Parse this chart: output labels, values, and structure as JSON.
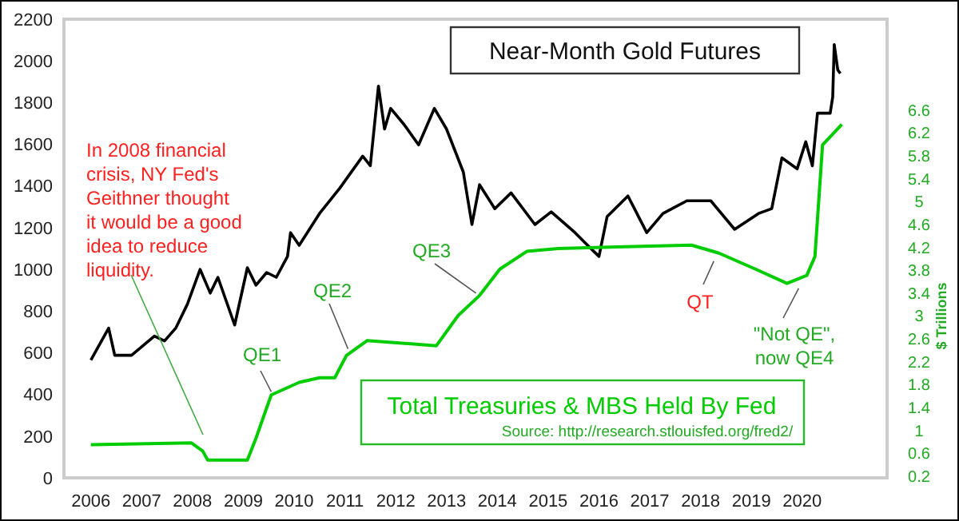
{
  "chart_data": {
    "type": "line",
    "title": "Near-Month Gold Futures",
    "y2label": "$ Trillions",
    "xlim": [
      2005.47,
      2021.67
    ],
    "xticks": [
      2006,
      2007,
      2008,
      2009,
      2010,
      2011,
      2012,
      2013,
      2014,
      2015,
      2016,
      2017,
      2018,
      2019,
      2020
    ],
    "ylim": [
      0,
      2200
    ],
    "yticks": [
      0,
      200,
      400,
      600,
      800,
      1000,
      1200,
      1400,
      1600,
      1800,
      2000,
      2200
    ],
    "y2lim": [
      0.17,
      8.19
    ],
    "y2ticks": [
      0.2,
      0.6,
      1,
      1.4,
      1.8,
      2.2,
      2.6,
      3,
      3.4,
      3.8,
      4.2,
      4.6,
      5,
      5.4,
      5.8,
      6.2,
      6.6
    ],
    "grid": false,
    "marker": "none",
    "series": [
      {
        "color": "#000000",
        "x": [
          2006.0,
          2006.35,
          2006.47,
          2006.8,
          2007.25,
          2007.45,
          2007.67,
          2007.9,
          2008.15,
          2008.35,
          2008.5,
          2008.83,
          2009.08,
          2009.25,
          2009.46,
          2009.65,
          2009.87,
          2009.93,
          2010.1,
          2010.5,
          2010.9,
          2011.35,
          2011.5,
          2011.66,
          2011.78,
          2011.9,
          2012.16,
          2012.45,
          2012.76,
          2013.0,
          2013.33,
          2013.5,
          2013.65,
          2013.95,
          2014.27,
          2014.74,
          2015.06,
          2015.53,
          2015.84,
          2016.0,
          2016.16,
          2016.57,
          2016.94,
          2017.26,
          2017.73,
          2018.2,
          2018.67,
          2019.14,
          2019.4,
          2019.6,
          2019.9,
          2020.07,
          2020.2,
          2020.3,
          2020.55,
          2020.6,
          2020.63,
          2020.7,
          2020.75
        ],
        "values": [
          565,
          718,
          588,
          588,
          680,
          657,
          718,
          833,
          1000,
          886,
          962,
          733,
          1008,
          924,
          985,
          962,
          1062,
          1176,
          1115,
          1268,
          1390,
          1543,
          1497,
          1879,
          1673,
          1772,
          1696,
          1597,
          1772,
          1673,
          1467,
          1215,
          1406,
          1291,
          1367,
          1215,
          1276,
          1176,
          1100,
          1062,
          1253,
          1352,
          1176,
          1268,
          1329,
          1329,
          1192,
          1268,
          1291,
          1535,
          1482,
          1612,
          1497,
          1749,
          1749,
          1826,
          2078,
          1956,
          1940
        ]
      },
      {
        "name": "Total Treasuries & MBS Held By Fed",
        "color": "#00cc00",
        "axis": "y2",
        "x": [
          2006.0,
          2007.98,
          2008.2,
          2008.3,
          2009.08,
          2009.24,
          2009.55,
          2010.1,
          2010.5,
          2010.8,
          2011.03,
          2011.44,
          2012.8,
          2013.23,
          2013.64,
          2014.05,
          2014.58,
          2015.2,
          2017.82,
          2018.36,
          2019.08,
          2019.7,
          2020.09,
          2020.25,
          2020.4,
          2020.78
        ],
        "values": [
          0.75,
          0.78,
          0.64,
          0.48,
          0.48,
          0.84,
          1.62,
          1.84,
          1.92,
          1.92,
          2.31,
          2.57,
          2.48,
          3.01,
          3.35,
          3.82,
          4.13,
          4.18,
          4.24,
          4.1,
          3.82,
          3.57,
          3.71,
          4.04,
          5.99,
          6.35
        ]
      }
    ],
    "annotations": [
      "In 2008 financial crisis, NY Fed's Geithner thought it would be a good idea to reduce liquidity.",
      {
        "text": "QE1",
        "x": 2009.55,
        "y": 413
      },
      {
        "text": "QE2",
        "x": 2011.06,
        "y": 619
      },
      {
        "text": "QE3",
        "x": 2013.58,
        "y": 886
      },
      {
        "text": "QT",
        "x": 2018.26,
        "y": 1039
      },
      {
        "text": "\"Not QE\", now QE4",
        "x": 2019.93,
        "y": 909
      },
      "Source: http://research.stlouisfed.org/fred2/"
    ]
  }
}
